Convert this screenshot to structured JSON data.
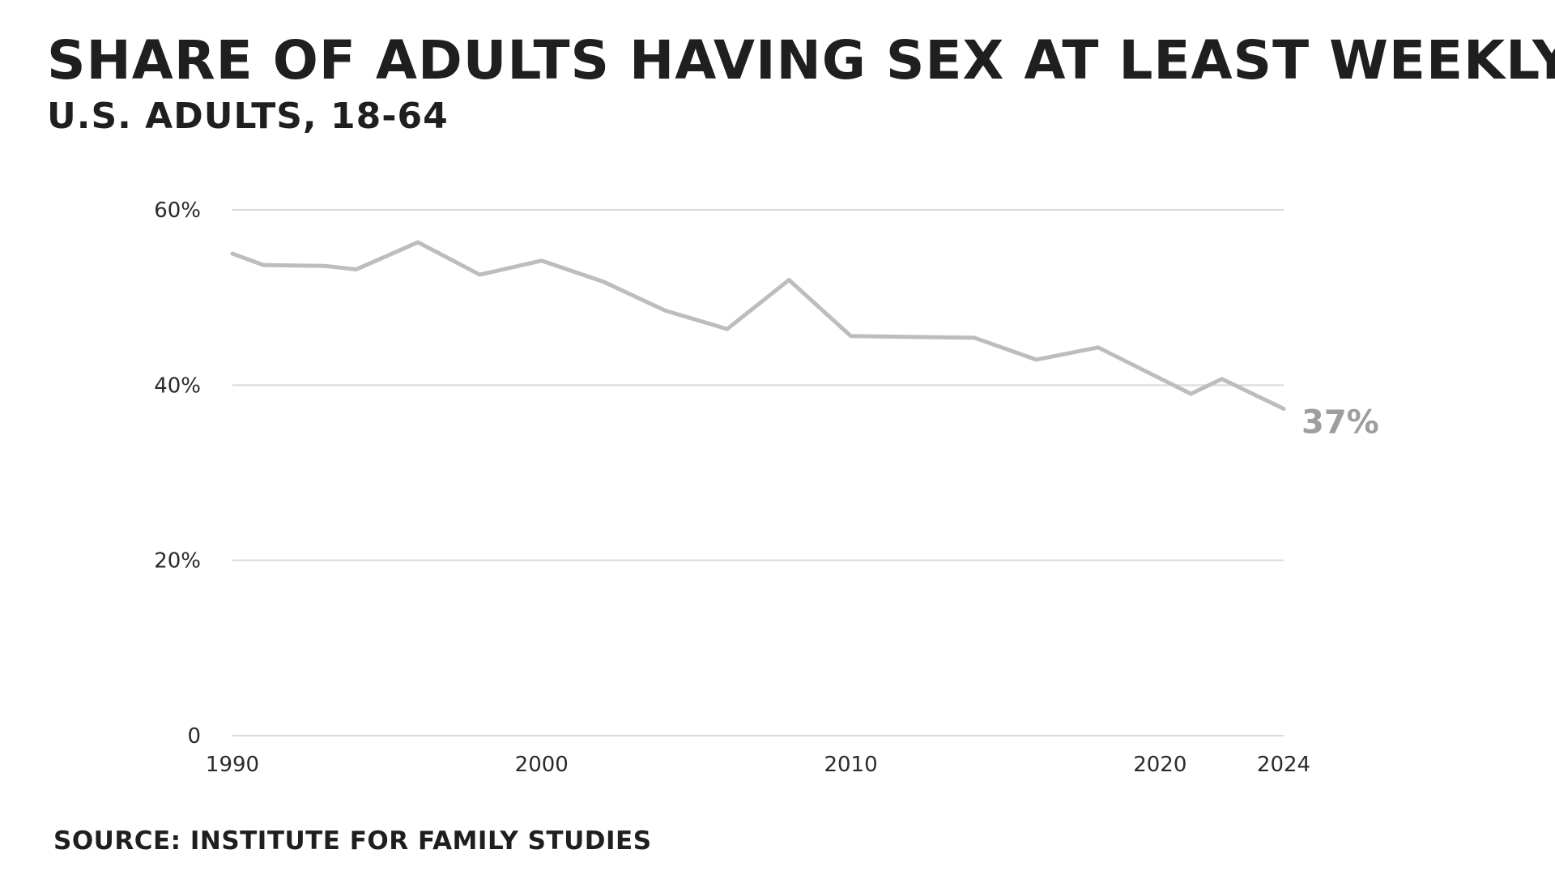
{
  "header": {
    "title": "Share of adults having sex at least weekly",
    "subtitle": "U.S. adults, 18-64"
  },
  "footer": {
    "source": "Source: Institute for Family Studies"
  },
  "colors": {
    "line": "#bdbdbd",
    "gridline": "#d9d9d9",
    "text": "#1f1f1f",
    "end_label": "#9e9e9e"
  },
  "chart_data": {
    "type": "line",
    "title": "Share of adults having sex at least weekly",
    "subtitle": "U.S. adults, 18-64",
    "xlabel": "",
    "ylabel": "",
    "x": [
      1990,
      1991,
      1993,
      1994,
      1996,
      1998,
      2000,
      2002,
      2004,
      2006,
      2008,
      2010,
      2012,
      2014,
      2016,
      2018,
      2021,
      2022,
      2024
    ],
    "series": [
      {
        "values": [
          55,
          53.7,
          53.6,
          53.2,
          56.3,
          52.6,
          54.2,
          51.8,
          48.5,
          46.4,
          52,
          45.6,
          45.5,
          45.4,
          42.9,
          44.3,
          39,
          40.7,
          37.3
        ]
      }
    ],
    "end_label": "37%",
    "xlim": [
      1990,
      2024
    ],
    "ylim": [
      0,
      60
    ],
    "x_ticks": [
      1990,
      2000,
      2010,
      2020,
      2024
    ],
    "x_tick_labels": [
      "1990",
      "2000",
      "2010",
      "2020",
      "2024"
    ],
    "y_ticks": [
      0,
      20,
      40,
      60
    ],
    "y_tick_labels": [
      "0",
      "20%",
      "40%",
      "60%"
    ],
    "grid": "horizontal",
    "legend": "none",
    "source": "Source: Institute for Family Studies"
  }
}
